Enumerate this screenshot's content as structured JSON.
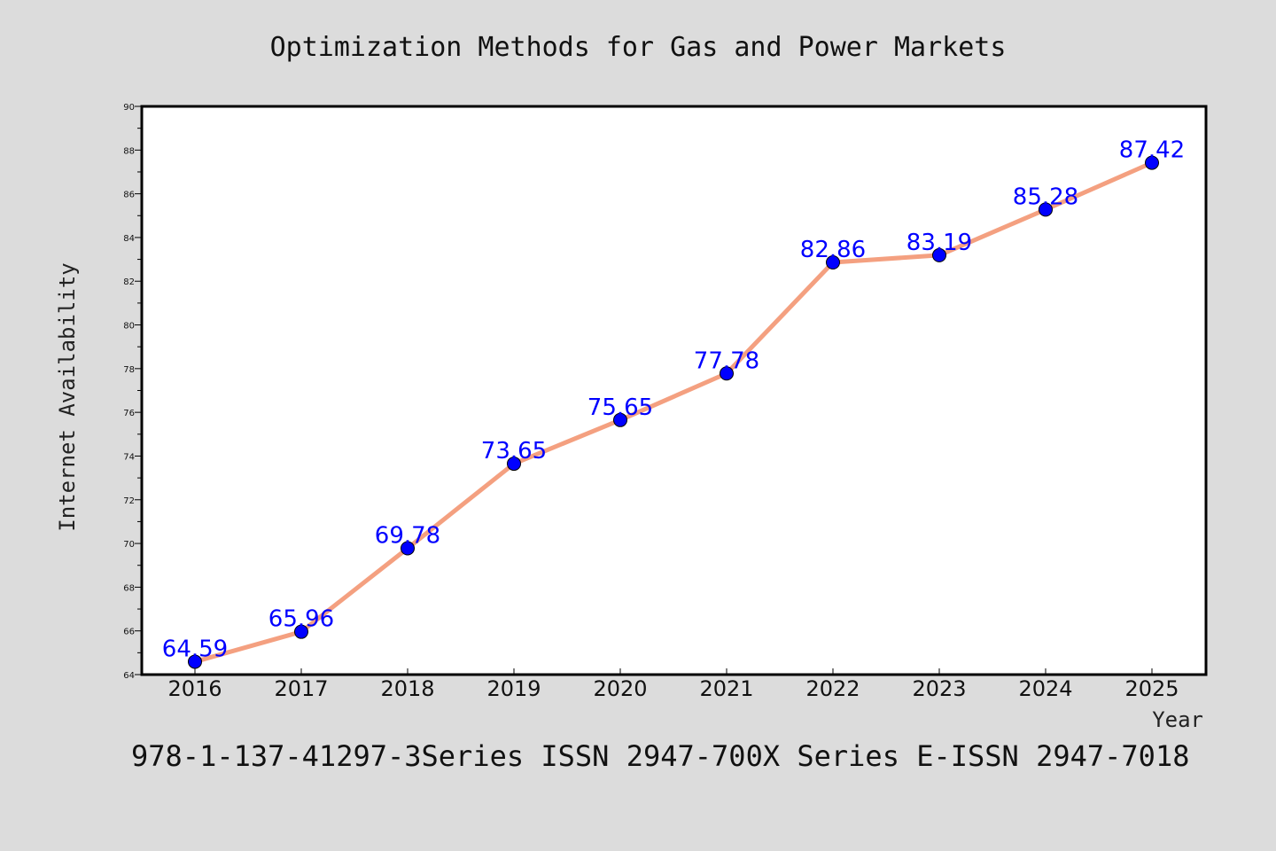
{
  "footer_text": "978-1-137-41297-3Series ISSN 2947-700X Series E-ISSN 2947-7018",
  "colors": {
    "background": "#dcdcdc",
    "plot_background": "#ffffff",
    "line": "#f4a080",
    "marker": "#0000ff",
    "data_label": "#0000ff"
  },
  "chart_data": {
    "type": "line",
    "title": "Optimization Methods for Gas and Power Markets",
    "xlabel": "Year",
    "ylabel": "Internet Availability",
    "x": [
      "2016",
      "2017",
      "2018",
      "2019",
      "2020",
      "2021",
      "2022",
      "2023",
      "2024",
      "2025"
    ],
    "series": [
      {
        "values": [
          64.59,
          65.96,
          69.78,
          73.65,
          75.65,
          77.78,
          82.86,
          83.19,
          85.28,
          87.42
        ],
        "labels": [
          "64.59",
          "65.96",
          "69.78",
          "73.65",
          "75.65",
          "77.78",
          "82.86",
          "83.19",
          "85.28",
          "87.42"
        ]
      }
    ],
    "ylim": [
      64,
      90
    ],
    "yticks": [
      "64",
      "66",
      "68",
      "70",
      "72",
      "74",
      "76",
      "78",
      "80",
      "82",
      "84",
      "86",
      "88",
      "90"
    ],
    "grid": false,
    "legend": "none"
  }
}
